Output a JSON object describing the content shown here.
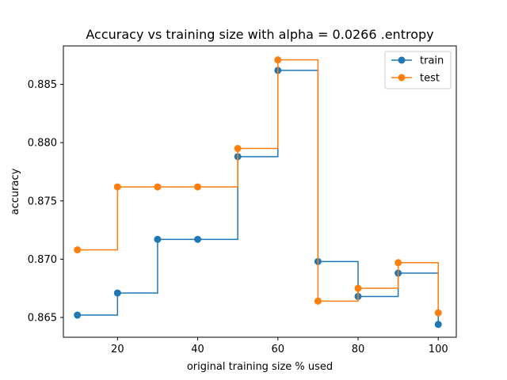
{
  "chart_data": {
    "type": "line",
    "step": "post",
    "title": "Accuracy vs training size with alpha = 0.0266 .entropy",
    "xlabel": "original training size % used",
    "ylabel": "accuracy",
    "xlim": [
      6.5,
      104.5
    ],
    "ylim": [
      0.8633,
      0.8883
    ],
    "xticks": [
      20,
      40,
      60,
      80,
      100
    ],
    "yticks": [
      0.865,
      0.87,
      0.875,
      0.88,
      0.885
    ],
    "ytick_labels": [
      "0.865",
      "0.870",
      "0.875",
      "0.880",
      "0.885"
    ],
    "grid": false,
    "legend_position": "top-right",
    "x": [
      10,
      20,
      30,
      40,
      50,
      60,
      70,
      80,
      90,
      100
    ],
    "series": [
      {
        "name": "train",
        "color": "#1f77b4",
        "values": [
          0.8652,
          0.8671,
          0.8717,
          0.8717,
          0.8788,
          0.8862,
          0.8698,
          0.8668,
          0.8688,
          0.8644
        ]
      },
      {
        "name": "test",
        "color": "#ff7f0e",
        "values": [
          0.8708,
          0.8762,
          0.8762,
          0.8762,
          0.8795,
          0.8871,
          0.8664,
          0.8675,
          0.8697,
          0.8654
        ]
      }
    ]
  }
}
